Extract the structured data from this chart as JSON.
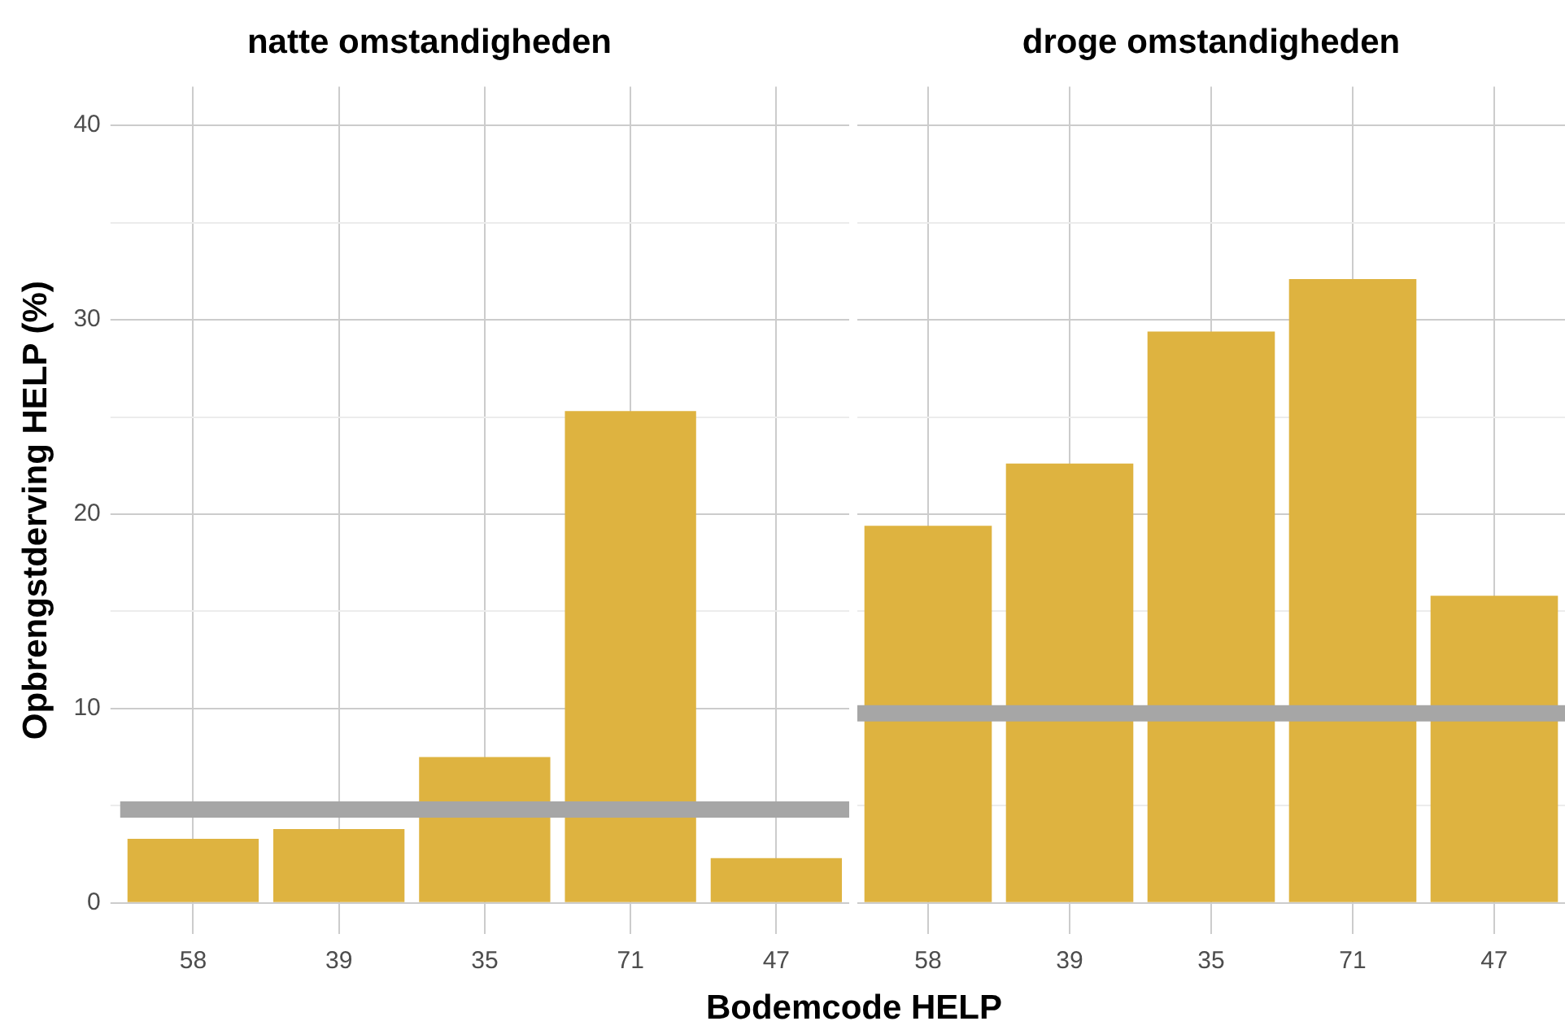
{
  "chart_data": [
    {
      "type": "bar",
      "title": "natte omstandigheden",
      "xlabel": "Bodemcode HELP",
      "ylabel": "Opbrengstderving HELP (%)",
      "categories": [
        "58",
        "39",
        "35",
        "71",
        "47"
      ],
      "values": [
        3.3,
        3.8,
        7.5,
        25.3,
        2.3
      ],
      "color": "#deb340",
      "ylim": [
        -1.6,
        42
      ],
      "yticks": [
        0,
        {
          "value": 5,
          "label": null
        },
        10,
        {
          "value": 15,
          "label": null
        },
        20,
        {
          "value": 25,
          "label": null
        },
        30,
        {
          "value": 35,
          "label": null
        },
        40
      ],
      "grid": true,
      "legend": false,
      "ref_lines": [
        {
          "axis": "y",
          "value": 4.8,
          "color": "#a6a6a6"
        }
      ]
    },
    {
      "type": "bar",
      "title": "droge omstandigheden",
      "categories": [
        "58",
        "39",
        "35",
        "71",
        "47"
      ],
      "values": [
        19.4,
        22.6,
        29.4,
        32.1,
        15.8
      ],
      "color": "#deb340",
      "ylim": [
        -1.6,
        42
      ],
      "yticks": [
        0,
        {
          "value": 5,
          "label": null
        },
        10,
        {
          "value": 15,
          "label": null
        },
        20,
        {
          "value": 25,
          "label": null
        },
        30,
        {
          "value": 35,
          "label": null
        },
        40
      ],
      "grid": true,
      "legend": false,
      "tick_labels": "x",
      "ref_lines": [
        {
          "axis": "y",
          "value": 9.75,
          "color": "#a6a6a6"
        }
      ]
    }
  ]
}
